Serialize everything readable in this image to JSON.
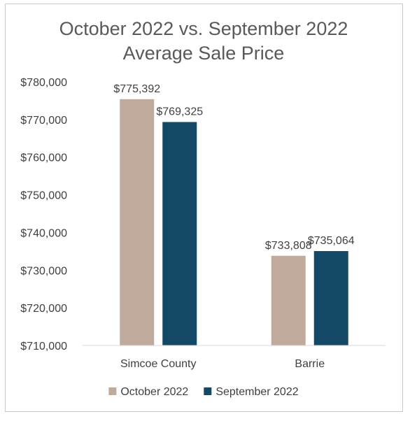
{
  "chart_data": {
    "type": "bar",
    "title_lines": [
      "October 2022 vs. September 2022",
      "Average Sale Price"
    ],
    "categories": [
      "Simcoe County",
      "Barrie"
    ],
    "series": [
      {
        "name": "October 2022",
        "color": "#bfaa9b",
        "values": [
          775392,
          733808
        ],
        "labels": [
          "$775,392",
          "$733,808"
        ]
      },
      {
        "name": "September 2022",
        "color": "#134866",
        "values": [
          769325,
          735064
        ],
        "labels": [
          "$769,325",
          "$735,064"
        ]
      }
    ],
    "ylim": [
      710000,
      780000
    ],
    "yticks": [
      710000,
      720000,
      730000,
      740000,
      750000,
      760000,
      770000,
      780000
    ],
    "ytick_labels": [
      "$710,000",
      "$720,000",
      "$730,000",
      "$740,000",
      "$750,000",
      "$760,000",
      "$770,000",
      "$780,000"
    ],
    "xlabel": "",
    "ylabel": "",
    "grid": false,
    "legend": "bottom"
  }
}
